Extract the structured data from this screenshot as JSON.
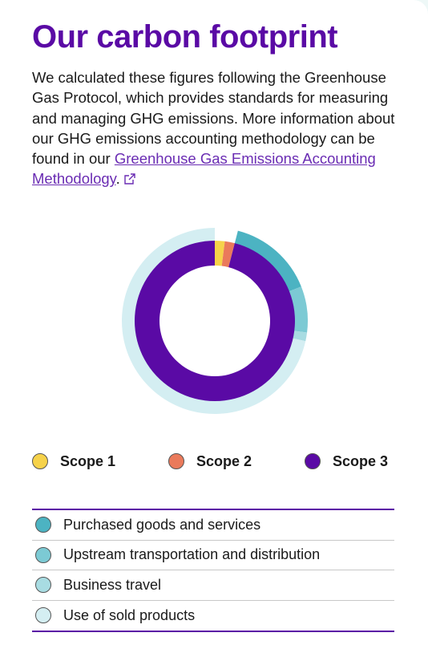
{
  "header": {
    "title": "Our carbon footprint",
    "intro_text": "We calculated these figures following the Greenhouse Gas Protocol, which provides standards for measuring and managing GHG emissions. More information about our GHG emissions accounting methodology can be found in our ",
    "link_text": "Greenhouse Gas Emissions Accounting Methodology",
    "after_link": "."
  },
  "chart_data": {
    "type": "pie",
    "style": "nested-donut",
    "title": "",
    "inner": {
      "categories": [
        "Scope 1",
        "Scope 2",
        "Scope 3"
      ],
      "values": [
        2,
        2,
        96
      ],
      "colors": [
        "#f6d24a",
        "#ea7a5b",
        "#5a0aa5"
      ]
    },
    "outer": {
      "categories": [
        "Scope 1",
        "Scope 2",
        "Purchased goods and services",
        "Upstream transportation and distribution",
        "Business travel",
        "Use of sold products"
      ],
      "values": [
        2,
        2,
        15,
        8,
        1.5,
        71.5
      ],
      "colors": [
        "#ffffff",
        "#ffffff",
        "#4cb3c2",
        "#7ccad4",
        "#a8dce2",
        "#d4eef2"
      ]
    }
  },
  "legend_scopes": [
    {
      "label": "Scope 1",
      "color": "#f6d24a"
    },
    {
      "label": "Scope 2",
      "color": "#ea7a5b"
    },
    {
      "label": "Scope 3",
      "color": "#5a0aa5"
    }
  ],
  "legend_categories": [
    {
      "label": "Purchased goods and services",
      "color": "#4cb3c2"
    },
    {
      "label": "Upstream transportation and distribution",
      "color": "#7ccad4"
    },
    {
      "label": "Business travel",
      "color": "#a8dce2"
    },
    {
      "label": "Use of sold products",
      "color": "#d4eef2"
    }
  ]
}
